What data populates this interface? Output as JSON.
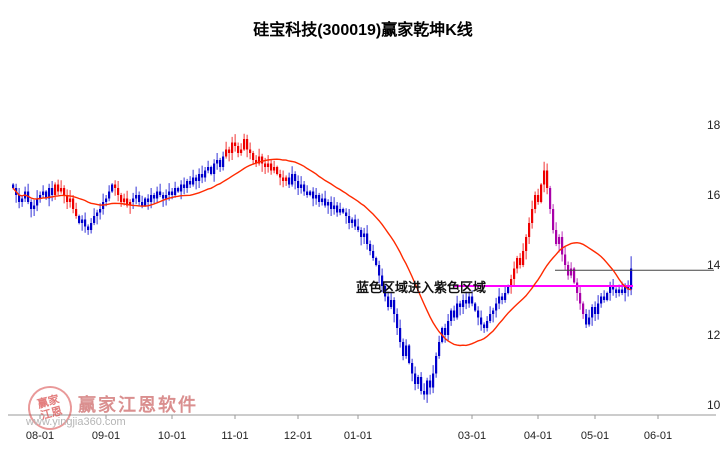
{
  "title": "硅宝科技(300019)赢家乾坤K线",
  "annotation": "蓝色区域进入紫色区域",
  "watermark": {
    "brand": "赢家江恩软件",
    "url": "www.yingjia360.com",
    "seal_text": "赢家江恩"
  },
  "chart_data": {
    "type": "candlestick",
    "title": "硅宝科技(300019)赢家乾坤K线",
    "x_tick_labels": [
      "08-01",
      "09-01",
      "10-01",
      "11-01",
      "12-01",
      "01-01",
      "03-01",
      "04-01",
      "05-01",
      "06-01"
    ],
    "x_tick_indices": [
      9,
      31,
      53,
      74,
      95,
      115,
      153,
      175,
      194,
      215
    ],
    "y_ticks": [
      18,
      16,
      14,
      12,
      10
    ],
    "ylim": [
      9.4,
      19.9
    ],
    "first_open": 16.3,
    "ma_period": 25,
    "closes": [
      16.2,
      16.0,
      15.8,
      15.9,
      16.1,
      15.8,
      15.6,
      15.7,
      15.9,
      16.0,
      16.1,
      15.9,
      16.2,
      16.0,
      16.3,
      16.1,
      16.2,
      16.0,
      15.8,
      15.9,
      15.6,
      15.4,
      15.2,
      15.3,
      15.1,
      15.0,
      15.2,
      15.4,
      15.5,
      15.6,
      15.8,
      15.9,
      16.1,
      16.3,
      16.2,
      16.0,
      15.8,
      15.9,
      15.7,
      15.8,
      15.9,
      16.0,
      15.8,
      15.7,
      15.9,
      15.8,
      16.0,
      15.9,
      16.1,
      16.0,
      15.9,
      16.0,
      16.1,
      16.0,
      16.2,
      16.1,
      16.3,
      16.2,
      16.4,
      16.3,
      16.5,
      16.4,
      16.6,
      16.5,
      16.7,
      16.8,
      16.6,
      16.9,
      17.0,
      16.8,
      17.1,
      17.3,
      17.2,
      17.5,
      17.4,
      17.2,
      17.3,
      17.6,
      17.3,
      17.2,
      17.0,
      16.9,
      17.1,
      16.9,
      16.8,
      16.9,
      16.7,
      16.8,
      16.6,
      16.5,
      16.4,
      16.5,
      16.3,
      16.6,
      16.4,
      16.2,
      16.3,
      16.1,
      16.0,
      16.1,
      15.9,
      16.0,
      15.8,
      15.9,
      15.7,
      15.8,
      15.6,
      15.7,
      15.5,
      15.6,
      15.5,
      15.4,
      15.2,
      15.3,
      15.1,
      15.0,
      14.8,
      14.9,
      14.6,
      14.4,
      14.2,
      14.0,
      13.7,
      13.4,
      13.1,
      12.8,
      13.0,
      12.6,
      12.2,
      11.8,
      11.4,
      11.7,
      11.2,
      10.9,
      10.6,
      10.8,
      10.4,
      10.3,
      10.7,
      10.5,
      10.9,
      11.4,
      11.8,
      12.2,
      12.0,
      12.4,
      12.7,
      12.5,
      12.9,
      12.8,
      13.0,
      12.9,
      13.1,
      12.9,
      12.7,
      12.5,
      12.3,
      12.2,
      12.4,
      12.6,
      12.7,
      12.9,
      13.1,
      13.0,
      13.2,
      13.4,
      13.6,
      13.9,
      14.2,
      14.0,
      14.4,
      14.8,
      15.2,
      15.6,
      16.0,
      15.8,
      16.3,
      16.7,
      16.2,
      15.6,
      15.0,
      14.6,
      14.8,
      14.3,
      14.0,
      13.7,
      13.9,
      13.5,
      13.2,
      12.9,
      12.6,
      12.3,
      12.5,
      12.8,
      12.6,
      12.9,
      13.1,
      13.0,
      13.2,
      13.4,
      13.3,
      13.2,
      13.3,
      13.2,
      13.4,
      13.3,
      13.9
    ],
    "zones": [
      {
        "from": 0,
        "to": 13,
        "color": "blue"
      },
      {
        "from": 14,
        "to": 21,
        "color": "red"
      },
      {
        "from": 22,
        "to": 33,
        "color": "blue"
      },
      {
        "from": 34,
        "to": 39,
        "color": "red"
      },
      {
        "from": 40,
        "to": 70,
        "color": "blue"
      },
      {
        "from": 71,
        "to": 91,
        "color": "red"
      },
      {
        "from": 92,
        "to": 165,
        "color": "blue"
      },
      {
        "from": 166,
        "to": 178,
        "color": "red"
      },
      {
        "from": 179,
        "to": 190,
        "color": "purple"
      },
      {
        "from": 191,
        "to": 206,
        "color": "blue"
      }
    ],
    "wick_overrides": {
      "77": {
        "high": 17.75
      },
      "137": {
        "low": 10.15
      },
      "177": {
        "high": 16.95
      },
      "206": {
        "high": 14.25
      }
    },
    "ref_line": {
      "price": 13.85,
      "from_index": 181
    },
    "signal_line": {
      "price": 13.4,
      "from_index": 147,
      "to_index": 207
    },
    "colors": {
      "blue": "#0000cc",
      "red": "#ee0000",
      "purple": "#a800a8",
      "ma": "#ff2a00",
      "ref_line": "#444444",
      "signal_line": "#ff00ff",
      "axis": "#999999",
      "tick_text": "#222222"
    }
  }
}
